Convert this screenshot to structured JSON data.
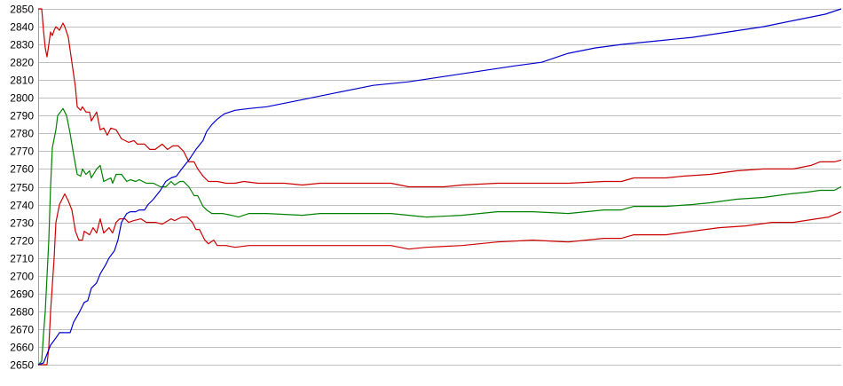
{
  "chart_data": {
    "type": "line",
    "title": "",
    "xlabel": "",
    "ylabel": "",
    "ylim": [
      2650,
      2850
    ],
    "xlim": [
      0,
      453
    ],
    "yticks": [
      2650,
      2660,
      2670,
      2680,
      2690,
      2700,
      2710,
      2720,
      2730,
      2740,
      2750,
      2760,
      2770,
      2780,
      2790,
      2800,
      2810,
      2820,
      2830,
      2840,
      2850
    ],
    "grid": "horizontal",
    "legend": "none",
    "series": [
      {
        "color": "#cc0000",
        "points": [
          [
            0,
            2850
          ],
          [
            2,
            2850
          ],
          [
            3,
            2838
          ],
          [
            4,
            2828
          ],
          [
            5,
            2823
          ],
          [
            6,
            2830
          ],
          [
            7,
            2837
          ],
          [
            8,
            2835
          ],
          [
            9,
            2838
          ],
          [
            10,
            2840
          ],
          [
            12,
            2838
          ],
          [
            14,
            2842
          ],
          [
            15,
            2840
          ],
          [
            17,
            2834
          ],
          [
            19,
            2820
          ],
          [
            21,
            2806
          ],
          [
            22,
            2795
          ],
          [
            24,
            2793
          ],
          [
            25,
            2795
          ],
          [
            27,
            2792
          ],
          [
            29,
            2792
          ],
          [
            30,
            2787
          ],
          [
            33,
            2792
          ],
          [
            35,
            2782
          ],
          [
            37,
            2783
          ],
          [
            39,
            2779
          ],
          [
            41,
            2783
          ],
          [
            44,
            2782
          ],
          [
            47,
            2777
          ],
          [
            49,
            2776
          ],
          [
            51,
            2775
          ],
          [
            54,
            2776
          ],
          [
            56,
            2774
          ],
          [
            60,
            2774
          ],
          [
            63,
            2771
          ],
          [
            66,
            2771
          ],
          [
            70,
            2774
          ],
          [
            73,
            2771
          ],
          [
            76,
            2773
          ],
          [
            79,
            2773
          ],
          [
            82,
            2770
          ],
          [
            85,
            2764
          ],
          [
            88,
            2764
          ],
          [
            90,
            2760
          ],
          [
            93,
            2756
          ],
          [
            96,
            2753
          ],
          [
            101,
            2753
          ],
          [
            106,
            2752
          ],
          [
            111,
            2752
          ],
          [
            116,
            2753
          ],
          [
            124,
            2752
          ],
          [
            129,
            2752
          ],
          [
            139,
            2752
          ],
          [
            149,
            2751
          ],
          [
            159,
            2752
          ],
          [
            179,
            2752
          ],
          [
            199,
            2752
          ],
          [
            209,
            2750
          ],
          [
            219,
            2750
          ],
          [
            229,
            2750
          ],
          [
            239,
            2751
          ],
          [
            259,
            2752
          ],
          [
            279,
            2752
          ],
          [
            299,
            2752
          ],
          [
            319,
            2753
          ],
          [
            329,
            2753
          ],
          [
            336,
            2755
          ],
          [
            354,
            2755
          ],
          [
            364,
            2756
          ],
          [
            379,
            2757
          ],
          [
            394,
            2759
          ],
          [
            409,
            2760
          ],
          [
            426,
            2760
          ],
          [
            431,
            2761
          ],
          [
            436,
            2762
          ],
          [
            441,
            2764
          ],
          [
            449,
            2764
          ],
          [
            453,
            2765
          ]
        ]
      },
      {
        "color": "#008000",
        "points": [
          [
            0,
            2650
          ],
          [
            2,
            2652
          ],
          [
            3,
            2667
          ],
          [
            4,
            2680
          ],
          [
            5,
            2700
          ],
          [
            6,
            2720
          ],
          [
            7,
            2750
          ],
          [
            8,
            2772
          ],
          [
            10,
            2782
          ],
          [
            11,
            2790
          ],
          [
            14,
            2794
          ],
          [
            16,
            2790
          ],
          [
            18,
            2780
          ],
          [
            20,
            2768
          ],
          [
            22,
            2757
          ],
          [
            24,
            2756
          ],
          [
            25,
            2760
          ],
          [
            27,
            2757
          ],
          [
            29,
            2759
          ],
          [
            30,
            2755
          ],
          [
            33,
            2760
          ],
          [
            35,
            2762
          ],
          [
            37,
            2753
          ],
          [
            39,
            2754
          ],
          [
            41,
            2755
          ],
          [
            42,
            2752
          ],
          [
            44,
            2757
          ],
          [
            47,
            2757
          ],
          [
            50,
            2753
          ],
          [
            52,
            2754
          ],
          [
            55,
            2753
          ],
          [
            57,
            2754
          ],
          [
            61,
            2752
          ],
          [
            65,
            2752
          ],
          [
            69,
            2750
          ],
          [
            72,
            2750
          ],
          [
            75,
            2753
          ],
          [
            77,
            2751
          ],
          [
            80,
            2753
          ],
          [
            82,
            2753
          ],
          [
            85,
            2750
          ],
          [
            88,
            2745
          ],
          [
            90,
            2745
          ],
          [
            93,
            2739
          ],
          [
            95,
            2737
          ],
          [
            98,
            2735
          ],
          [
            104,
            2735
          ],
          [
            109,
            2734
          ],
          [
            113,
            2733
          ],
          [
            119,
            2735
          ],
          [
            129,
            2735
          ],
          [
            149,
            2734
          ],
          [
            159,
            2735
          ],
          [
            179,
            2735
          ],
          [
            199,
            2735
          ],
          [
            219,
            2733
          ],
          [
            239,
            2734
          ],
          [
            259,
            2736
          ],
          [
            279,
            2736
          ],
          [
            299,
            2735
          ],
          [
            319,
            2737
          ],
          [
            329,
            2737
          ],
          [
            336,
            2739
          ],
          [
            354,
            2739
          ],
          [
            369,
            2740
          ],
          [
            379,
            2741
          ],
          [
            394,
            2743
          ],
          [
            409,
            2744
          ],
          [
            424,
            2746
          ],
          [
            434,
            2747
          ],
          [
            441,
            2748
          ],
          [
            449,
            2748
          ],
          [
            453,
            2750
          ]
        ]
      },
      {
        "color": "#cc0000",
        "points": [
          [
            0,
            2650
          ],
          [
            5,
            2650
          ],
          [
            6,
            2660
          ],
          [
            7,
            2680
          ],
          [
            9,
            2710
          ],
          [
            10,
            2730
          ],
          [
            12,
            2740
          ],
          [
            15,
            2746
          ],
          [
            17,
            2742
          ],
          [
            19,
            2737
          ],
          [
            21,
            2725
          ],
          [
            23,
            2720
          ],
          [
            25,
            2720
          ],
          [
            26,
            2725
          ],
          [
            29,
            2723
          ],
          [
            31,
            2727
          ],
          [
            33,
            2724
          ],
          [
            35,
            2732
          ],
          [
            37,
            2724
          ],
          [
            40,
            2727
          ],
          [
            42,
            2724
          ],
          [
            44,
            2730
          ],
          [
            46,
            2732
          ],
          [
            49,
            2732
          ],
          [
            51,
            2730
          ],
          [
            54,
            2731
          ],
          [
            58,
            2732
          ],
          [
            61,
            2730
          ],
          [
            66,
            2730
          ],
          [
            70,
            2729
          ],
          [
            75,
            2732
          ],
          [
            77,
            2731
          ],
          [
            81,
            2733
          ],
          [
            84,
            2733
          ],
          [
            87,
            2730
          ],
          [
            89,
            2726
          ],
          [
            91,
            2726
          ],
          [
            94,
            2720
          ],
          [
            96,
            2718
          ],
          [
            99,
            2720
          ],
          [
            101,
            2717
          ],
          [
            106,
            2717
          ],
          [
            111,
            2716
          ],
          [
            119,
            2717
          ],
          [
            129,
            2717
          ],
          [
            149,
            2717
          ],
          [
            169,
            2717
          ],
          [
            199,
            2717
          ],
          [
            209,
            2715
          ],
          [
            219,
            2716
          ],
          [
            239,
            2717
          ],
          [
            259,
            2719
          ],
          [
            279,
            2720
          ],
          [
            299,
            2719
          ],
          [
            319,
            2721
          ],
          [
            329,
            2721
          ],
          [
            336,
            2723
          ],
          [
            354,
            2723
          ],
          [
            369,
            2725
          ],
          [
            384,
            2727
          ],
          [
            399,
            2728
          ],
          [
            414,
            2730
          ],
          [
            426,
            2730
          ],
          [
            439,
            2732
          ],
          [
            446,
            2733
          ],
          [
            453,
            2736
          ]
        ]
      },
      {
        "color": "#0000cc",
        "points": [
          [
            0,
            2650
          ],
          [
            3,
            2651
          ],
          [
            5,
            2656
          ],
          [
            7,
            2661
          ],
          [
            10,
            2665
          ],
          [
            12,
            2668
          ],
          [
            15,
            2668
          ],
          [
            18,
            2668
          ],
          [
            20,
            2674
          ],
          [
            23,
            2679
          ],
          [
            26,
            2685
          ],
          [
            28,
            2686
          ],
          [
            30,
            2693
          ],
          [
            33,
            2696
          ],
          [
            35,
            2701
          ],
          [
            38,
            2706
          ],
          [
            40,
            2710
          ],
          [
            43,
            2714
          ],
          [
            45,
            2720
          ],
          [
            47,
            2730
          ],
          [
            50,
            2735
          ],
          [
            52,
            2736
          ],
          [
            55,
            2736
          ],
          [
            57,
            2737
          ],
          [
            60,
            2737
          ],
          [
            62,
            2740
          ],
          [
            65,
            2743
          ],
          [
            69,
            2748
          ],
          [
            72,
            2753
          ],
          [
            75,
            2755
          ],
          [
            78,
            2756
          ],
          [
            81,
            2760
          ],
          [
            85,
            2765
          ],
          [
            89,
            2771
          ],
          [
            93,
            2776
          ],
          [
            95,
            2781
          ],
          [
            98,
            2785
          ],
          [
            101,
            2788
          ],
          [
            105,
            2791
          ],
          [
            108,
            2792
          ],
          [
            111,
            2793
          ],
          [
            119,
            2794
          ],
          [
            129,
            2795
          ],
          [
            149,
            2799
          ],
          [
            169,
            2803
          ],
          [
            189,
            2807
          ],
          [
            209,
            2809
          ],
          [
            229,
            2812
          ],
          [
            249,
            2815
          ],
          [
            269,
            2818
          ],
          [
            284,
            2820
          ],
          [
            299,
            2825
          ],
          [
            314,
            2828
          ],
          [
            329,
            2830
          ],
          [
            349,
            2832
          ],
          [
            369,
            2834
          ],
          [
            389,
            2837
          ],
          [
            409,
            2840
          ],
          [
            429,
            2844
          ],
          [
            444,
            2847
          ],
          [
            453,
            2850
          ]
        ]
      }
    ]
  },
  "colors": {
    "grid": "#c0c0c0",
    "axis": "#a0a0a0"
  }
}
